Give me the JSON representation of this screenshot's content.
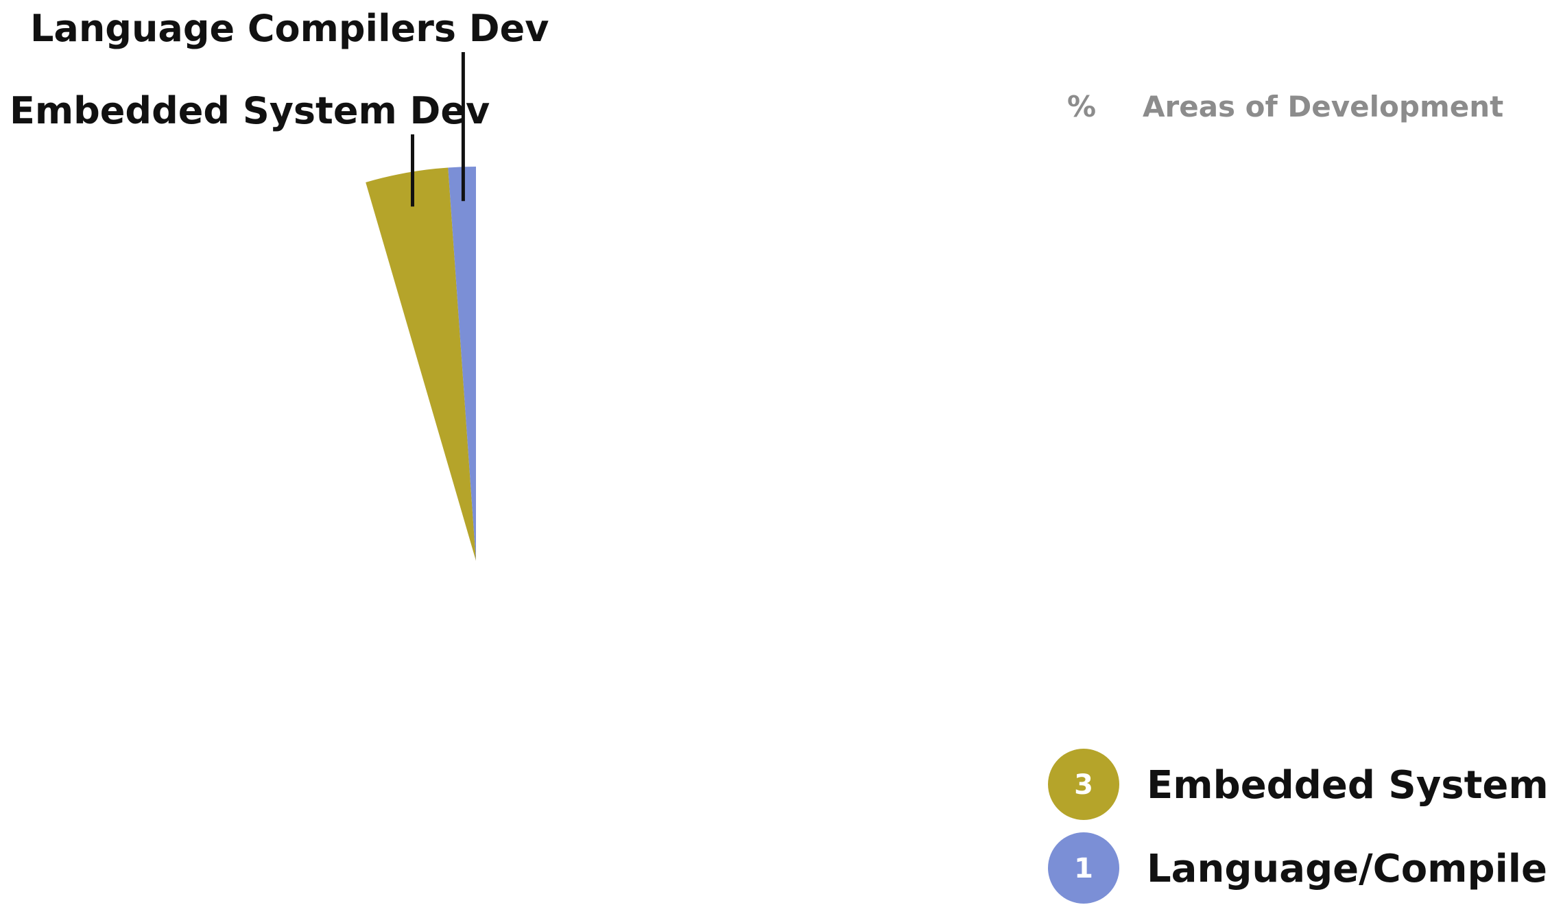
{
  "chart_data": {
    "type": "pie",
    "legend_header": {
      "percent_label": "%",
      "title": "Areas of Development"
    },
    "slices": [
      {
        "callout": "Embedded System Dev",
        "legend_label": "Embedded Systems",
        "value": 3,
        "color": "#b5a42a"
      },
      {
        "callout": "Language Compilers Dev",
        "legend_label": "Language/Compilers",
        "value": 1,
        "color": "#7b8fd6"
      }
    ],
    "legend_placement": "bottom-right"
  }
}
